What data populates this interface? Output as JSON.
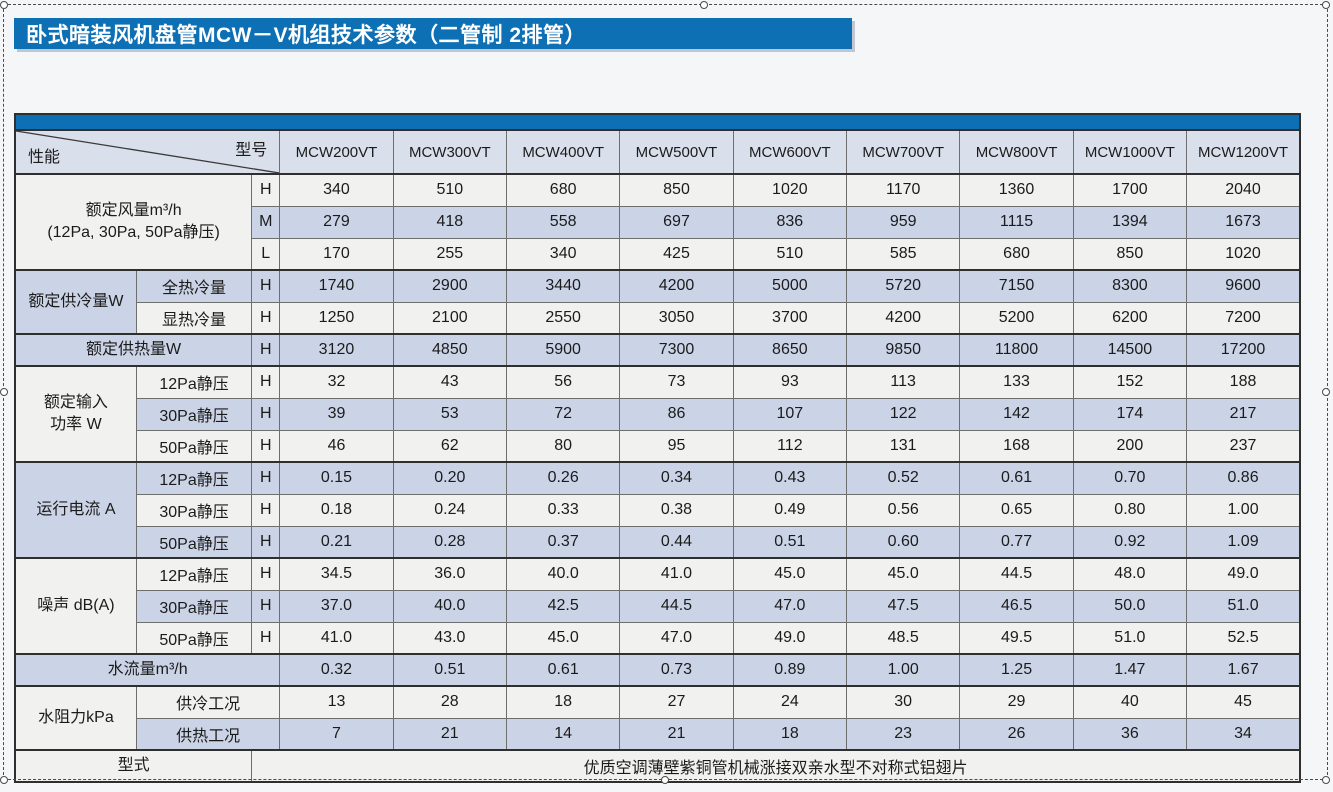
{
  "title": "卧式暗装风机盘管MCW－V机组技术参数（二管制 2排管）",
  "table": {
    "corner": {
      "left": "性能",
      "right": "型号"
    },
    "models": [
      "MCW200VT",
      "MCW300VT",
      "MCW400VT",
      "MCW500VT",
      "MCW600VT",
      "MCW700VT",
      "MCW800VT",
      "MCW1000VT",
      "MCW1200VT"
    ],
    "rows": [
      {
        "section": true,
        "shade": "w",
        "group": {
          "text": "额定风量m³/h\n(12Pa, 30Pa, 50Pa静压)",
          "rowspan": 3,
          "colspan": 2,
          "shade": "w"
        },
        "speed": "H",
        "values": [
          "340",
          "510",
          "680",
          "850",
          "1020",
          "1170",
          "1360",
          "1700",
          "2040"
        ]
      },
      {
        "shade": "b",
        "speed": "M",
        "values": [
          "279",
          "418",
          "558",
          "697",
          "836",
          "959",
          "1115",
          "1394",
          "1673"
        ]
      },
      {
        "shade": "w",
        "speed": "L",
        "values": [
          "170",
          "255",
          "340",
          "425",
          "510",
          "585",
          "680",
          "850",
          "1020"
        ]
      },
      {
        "section": true,
        "shade": "b",
        "group": {
          "text": "额定供冷量W",
          "rowspan": 2,
          "colspan": 1,
          "shade": "b"
        },
        "sub": "全热冷量",
        "speed": "H",
        "values": [
          "1740",
          "2900",
          "3440",
          "4200",
          "5000",
          "5720",
          "7150",
          "8300",
          "9600"
        ]
      },
      {
        "shade": "w",
        "sub": "显热冷量",
        "speed": "H",
        "values": [
          "1250",
          "2100",
          "2550",
          "3050",
          "3700",
          "4200",
          "5200",
          "6200",
          "7200"
        ]
      },
      {
        "section": true,
        "shade": "b",
        "group": {
          "text": "额定供热量W",
          "rowspan": 1,
          "colspan": 2,
          "shade": "b"
        },
        "speed": "H",
        "values": [
          "3120",
          "4850",
          "5900",
          "7300",
          "8650",
          "9850",
          "11800",
          "14500",
          "17200"
        ]
      },
      {
        "section": true,
        "shade": "w",
        "group": {
          "text": "额定输入\n功率 W",
          "rowspan": 3,
          "colspan": 1,
          "shade": "w"
        },
        "sub": "12Pa静压",
        "speed": "H",
        "values": [
          "32",
          "43",
          "56",
          "73",
          "93",
          "113",
          "133",
          "152",
          "188"
        ]
      },
      {
        "shade": "b",
        "sub": "30Pa静压",
        "speed": "H",
        "values": [
          "39",
          "53",
          "72",
          "86",
          "107",
          "122",
          "142",
          "174",
          "217"
        ]
      },
      {
        "shade": "w",
        "sub": "50Pa静压",
        "speed": "H",
        "values": [
          "46",
          "62",
          "80",
          "95",
          "112",
          "131",
          "168",
          "200",
          "237"
        ]
      },
      {
        "section": true,
        "shade": "b",
        "group": {
          "text": "运行电流 A",
          "rowspan": 3,
          "colspan": 1,
          "shade": "b"
        },
        "sub": "12Pa静压",
        "speed": "H",
        "values": [
          "0.15",
          "0.20",
          "0.26",
          "0.34",
          "0.43",
          "0.52",
          "0.61",
          "0.70",
          "0.86"
        ]
      },
      {
        "shade": "w",
        "sub": "30Pa静压",
        "speed": "H",
        "values": [
          "0.18",
          "0.24",
          "0.33",
          "0.38",
          "0.49",
          "0.56",
          "0.65",
          "0.80",
          "1.00"
        ]
      },
      {
        "shade": "b",
        "sub": "50Pa静压",
        "speed": "H",
        "values": [
          "0.21",
          "0.28",
          "0.37",
          "0.44",
          "0.51",
          "0.60",
          "0.77",
          "0.92",
          "1.09"
        ]
      },
      {
        "section": true,
        "shade": "w",
        "group": {
          "text": "噪声 dB(A)",
          "rowspan": 3,
          "colspan": 1,
          "shade": "w"
        },
        "sub": "12Pa静压",
        "speed": "H",
        "values": [
          "34.5",
          "36.0",
          "40.0",
          "41.0",
          "45.0",
          "45.0",
          "44.5",
          "48.0",
          "49.0"
        ]
      },
      {
        "shade": "b",
        "sub": "30Pa静压",
        "speed": "H",
        "values": [
          "37.0",
          "40.0",
          "42.5",
          "44.5",
          "47.0",
          "47.5",
          "46.5",
          "50.0",
          "51.0"
        ]
      },
      {
        "shade": "w",
        "sub": "50Pa静压",
        "speed": "H",
        "values": [
          "41.0",
          "43.0",
          "45.0",
          "47.0",
          "49.0",
          "48.5",
          "49.5",
          "51.0",
          "52.5"
        ]
      },
      {
        "section": true,
        "shade": "b",
        "group": {
          "text": "水流量m³/h",
          "rowspan": 1,
          "colspan": 3,
          "shade": "b"
        },
        "values": [
          "0.32",
          "0.51",
          "0.61",
          "0.73",
          "0.89",
          "1.00",
          "1.25",
          "1.47",
          "1.67"
        ]
      },
      {
        "section": true,
        "shade": "w",
        "group": {
          "text": "水阻力kPa",
          "rowspan": 2,
          "colspan": 1,
          "shade": "w"
        },
        "sub": "供冷工况",
        "subcolspan": 2,
        "values": [
          "13",
          "28",
          "18",
          "27",
          "24",
          "30",
          "29",
          "40",
          "45"
        ]
      },
      {
        "shade": "b",
        "sub": "供热工况",
        "subcolspan": 2,
        "values": [
          "7",
          "21",
          "14",
          "21",
          "18",
          "23",
          "26",
          "36",
          "34"
        ]
      },
      {
        "section": true,
        "shade": "w",
        "group": {
          "text": "型式",
          "rowspan": 1,
          "colspan": 2,
          "shade": "w"
        },
        "note": {
          "text": "优质空调薄壁紫铜管机械涨接双亲水型不对称式铝翅片",
          "colspan": 10
        }
      }
    ]
  }
}
